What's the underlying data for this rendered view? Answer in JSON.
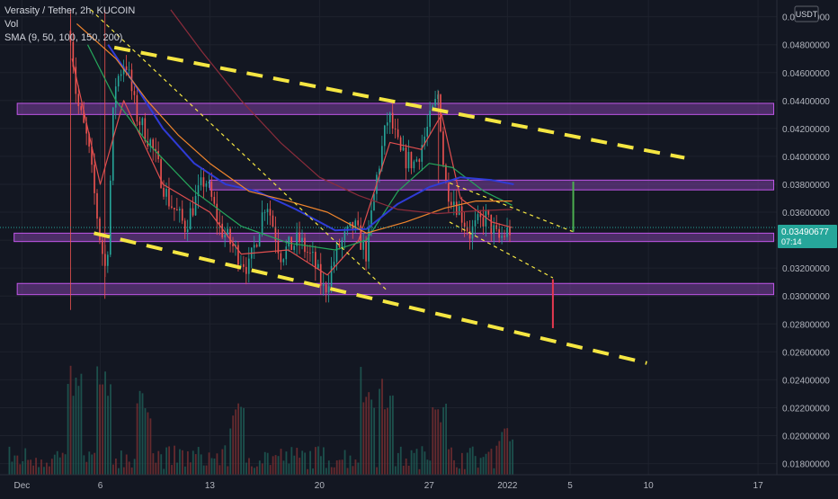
{
  "legend": {
    "title": "Verasity / Tether, 2h, KUCOIN",
    "vol": "Vol",
    "sma": "SMA (9, 50, 100, 150, 200)"
  },
  "currency_badge": "USDT",
  "price_badge": {
    "price": "0.03490677",
    "countdown": "07:14"
  },
  "chart_data": {
    "type": "candlestick",
    "symbol": "Verasity / Tether",
    "timeframe": "2h",
    "exchange": "KUCOIN",
    "x_labels": [
      "Dec",
      "6",
      "13",
      "20",
      "27",
      "2022",
      "5",
      "10",
      "17"
    ],
    "x_label_days": [
      1,
      6,
      13,
      20,
      27,
      32,
      36,
      41,
      48
    ],
    "y_ticks": [
      "0.05000000",
      "0.04800000",
      "0.04600000",
      "0.04400000",
      "0.04200000",
      "0.04000000",
      "0.03800000",
      "0.03600000",
      "0.03400000",
      "0.03200000",
      "0.03000000",
      "0.02800000",
      "0.02600000",
      "0.02400000",
      "0.02200000",
      "0.02000000",
      "0.01800000"
    ],
    "y_range": [
      0.0172,
      0.0512
    ],
    "x_range_days": [
      -0.4,
      49.2
    ],
    "last_price": 0.03490677,
    "price_path": [
      [
        4.1,
        0.049
      ],
      [
        4.5,
        0.044
      ],
      [
        5.2,
        0.041
      ],
      [
        6.0,
        0.034
      ],
      [
        6.4,
        0.0315
      ],
      [
        6.9,
        0.045
      ],
      [
        7.6,
        0.047
      ],
      [
        8.3,
        0.043
      ],
      [
        9.2,
        0.041
      ],
      [
        10.3,
        0.037
      ],
      [
        11.4,
        0.035
      ],
      [
        12.7,
        0.0385
      ],
      [
        13.6,
        0.035
      ],
      [
        14.6,
        0.0333
      ],
      [
        15.5,
        0.032
      ],
      [
        16.6,
        0.037
      ],
      [
        17.5,
        0.033
      ],
      [
        18.7,
        0.034
      ],
      [
        19.6,
        0.0325
      ],
      [
        20.3,
        0.0303
      ],
      [
        21.2,
        0.0335
      ],
      [
        22.2,
        0.035
      ],
      [
        23.0,
        0.033
      ],
      [
        23.6,
        0.0382
      ],
      [
        24.4,
        0.043
      ],
      [
        25.2,
        0.04
      ],
      [
        26.1,
        0.0395
      ],
      [
        26.9,
        0.042
      ],
      [
        27.6,
        0.0445
      ],
      [
        28.0,
        0.038
      ],
      [
        28.8,
        0.0365
      ],
      [
        29.6,
        0.0345
      ],
      [
        30.6,
        0.0357
      ],
      [
        31.4,
        0.034
      ],
      [
        32.3,
        0.0349
      ]
    ],
    "sma_lines": [
      {
        "label": "SMA 9",
        "color": "#e04e4e",
        "points": [
          [
            4.2,
            0.047
          ],
          [
            6.0,
            0.038
          ],
          [
            7.5,
            0.044
          ],
          [
            10.0,
            0.038
          ],
          [
            13.0,
            0.036
          ],
          [
            15.0,
            0.033
          ],
          [
            18.0,
            0.0333
          ],
          [
            20.5,
            0.0315
          ],
          [
            22.5,
            0.034
          ],
          [
            24.5,
            0.041
          ],
          [
            26.5,
            0.0405
          ],
          [
            27.8,
            0.043
          ],
          [
            29.0,
            0.037
          ],
          [
            31.0,
            0.0353
          ],
          [
            32.3,
            0.0349
          ]
        ]
      },
      {
        "label": "SMA 50",
        "color": "#26a65b",
        "points": [
          [
            5.2,
            0.048
          ],
          [
            7.0,
            0.044
          ],
          [
            9.0,
            0.041
          ],
          [
            12.0,
            0.0375
          ],
          [
            15.0,
            0.035
          ],
          [
            18.0,
            0.0338
          ],
          [
            21.0,
            0.0333
          ],
          [
            23.0,
            0.034
          ],
          [
            25.0,
            0.0375
          ],
          [
            27.0,
            0.0395
          ],
          [
            28.5,
            0.0392
          ],
          [
            30.5,
            0.0375
          ],
          [
            32.3,
            0.0365
          ]
        ]
      },
      {
        "label": "SMA 100",
        "color": "#2f3bd6",
        "points": [
          [
            6.5,
            0.048
          ],
          [
            8.0,
            0.0455
          ],
          [
            10.0,
            0.042
          ],
          [
            12.0,
            0.0395
          ],
          [
            14.0,
            0.038
          ],
          [
            16.0,
            0.0375
          ],
          [
            18.5,
            0.0362
          ],
          [
            21.0,
            0.0347
          ],
          [
            23.0,
            0.0348
          ],
          [
            25.0,
            0.0366
          ],
          [
            27.0,
            0.0378
          ],
          [
            29.0,
            0.0385
          ],
          [
            31.0,
            0.0383
          ],
          [
            32.4,
            0.038
          ]
        ]
      },
      {
        "label": "SMA 150",
        "color": "#f0852d",
        "points": [
          [
            4.5,
            0.0495
          ],
          [
            7.0,
            0.047
          ],
          [
            9.0,
            0.044
          ],
          [
            11.0,
            0.0415
          ],
          [
            13.0,
            0.0395
          ],
          [
            15.5,
            0.0375
          ],
          [
            18.0,
            0.0368
          ],
          [
            20.5,
            0.036
          ],
          [
            23.0,
            0.0345
          ],
          [
            25.5,
            0.0353
          ],
          [
            28.0,
            0.0363
          ],
          [
            30.0,
            0.0368
          ],
          [
            32.3,
            0.0368
          ]
        ]
      },
      {
        "label": "SMA 200",
        "color": "#8b2c3b",
        "points": [
          [
            10.5,
            0.0505
          ],
          [
            12.5,
            0.0475
          ],
          [
            15.0,
            0.044
          ],
          [
            17.5,
            0.041
          ],
          [
            20.0,
            0.0385
          ],
          [
            22.5,
            0.0372
          ],
          [
            25.0,
            0.0362
          ],
          [
            27.5,
            0.0359
          ],
          [
            30.0,
            0.0361
          ],
          [
            32.3,
            0.0362
          ]
        ]
      }
    ],
    "zones": [
      {
        "from_day": 0.7,
        "to_day": 49.0,
        "low": 0.043,
        "high": 0.0438
      },
      {
        "from_day": 13.0,
        "to_day": 49.0,
        "low": 0.0376,
        "high": 0.0383
      },
      {
        "from_day": 0.5,
        "to_day": 49.0,
        "low": 0.0339,
        "high": 0.0345
      },
      {
        "from_day": 0.7,
        "to_day": 49.0,
        "low": 0.0301,
        "high": 0.0309
      }
    ],
    "trendlines": [
      {
        "style": "thick-dashed",
        "color": "#f5e642",
        "from": [
          6.9,
          0.0478
        ],
        "to": [
          43.3,
          0.0399
        ]
      },
      {
        "style": "thick-dashed",
        "color": "#f5e642",
        "from": [
          5.6,
          0.0345
        ],
        "to": [
          40.9,
          0.0252
        ]
      },
      {
        "style": "thin-dashed",
        "color": "#f5e642",
        "from": [
          5.4,
          0.0505
        ],
        "to": [
          24.4,
          0.0303
        ]
      },
      {
        "style": "thin-dashed",
        "color": "#f5e642",
        "from": [
          28.3,
          0.0381
        ],
        "to": [
          36.2,
          0.0346
        ]
      },
      {
        "style": "thin-dashed",
        "color": "#f5e642",
        "from": [
          28.3,
          0.0353
        ],
        "to": [
          34.9,
          0.0313
        ]
      }
    ],
    "targets": [
      {
        "color": "#4caf50",
        "day": 36.2,
        "from": 0.0346,
        "to": 0.0382
      },
      {
        "color": "#e53950",
        "day": 34.9,
        "from": 0.0312,
        "to": 0.0277
      }
    ],
    "volume": {
      "max_height_fraction": 0.23,
      "start_day": 0.2,
      "end_day": 32.4
    }
  },
  "colors": {
    "background": "#131722",
    "grid": "#1e222d",
    "axis_text": "#b2b5be",
    "zone_fill": "#7b3fa0",
    "zone_edge": "#c056e8",
    "candle_up": "#26a69a",
    "candle_down": "#ef5350",
    "price_badge": "#26a69a"
  }
}
